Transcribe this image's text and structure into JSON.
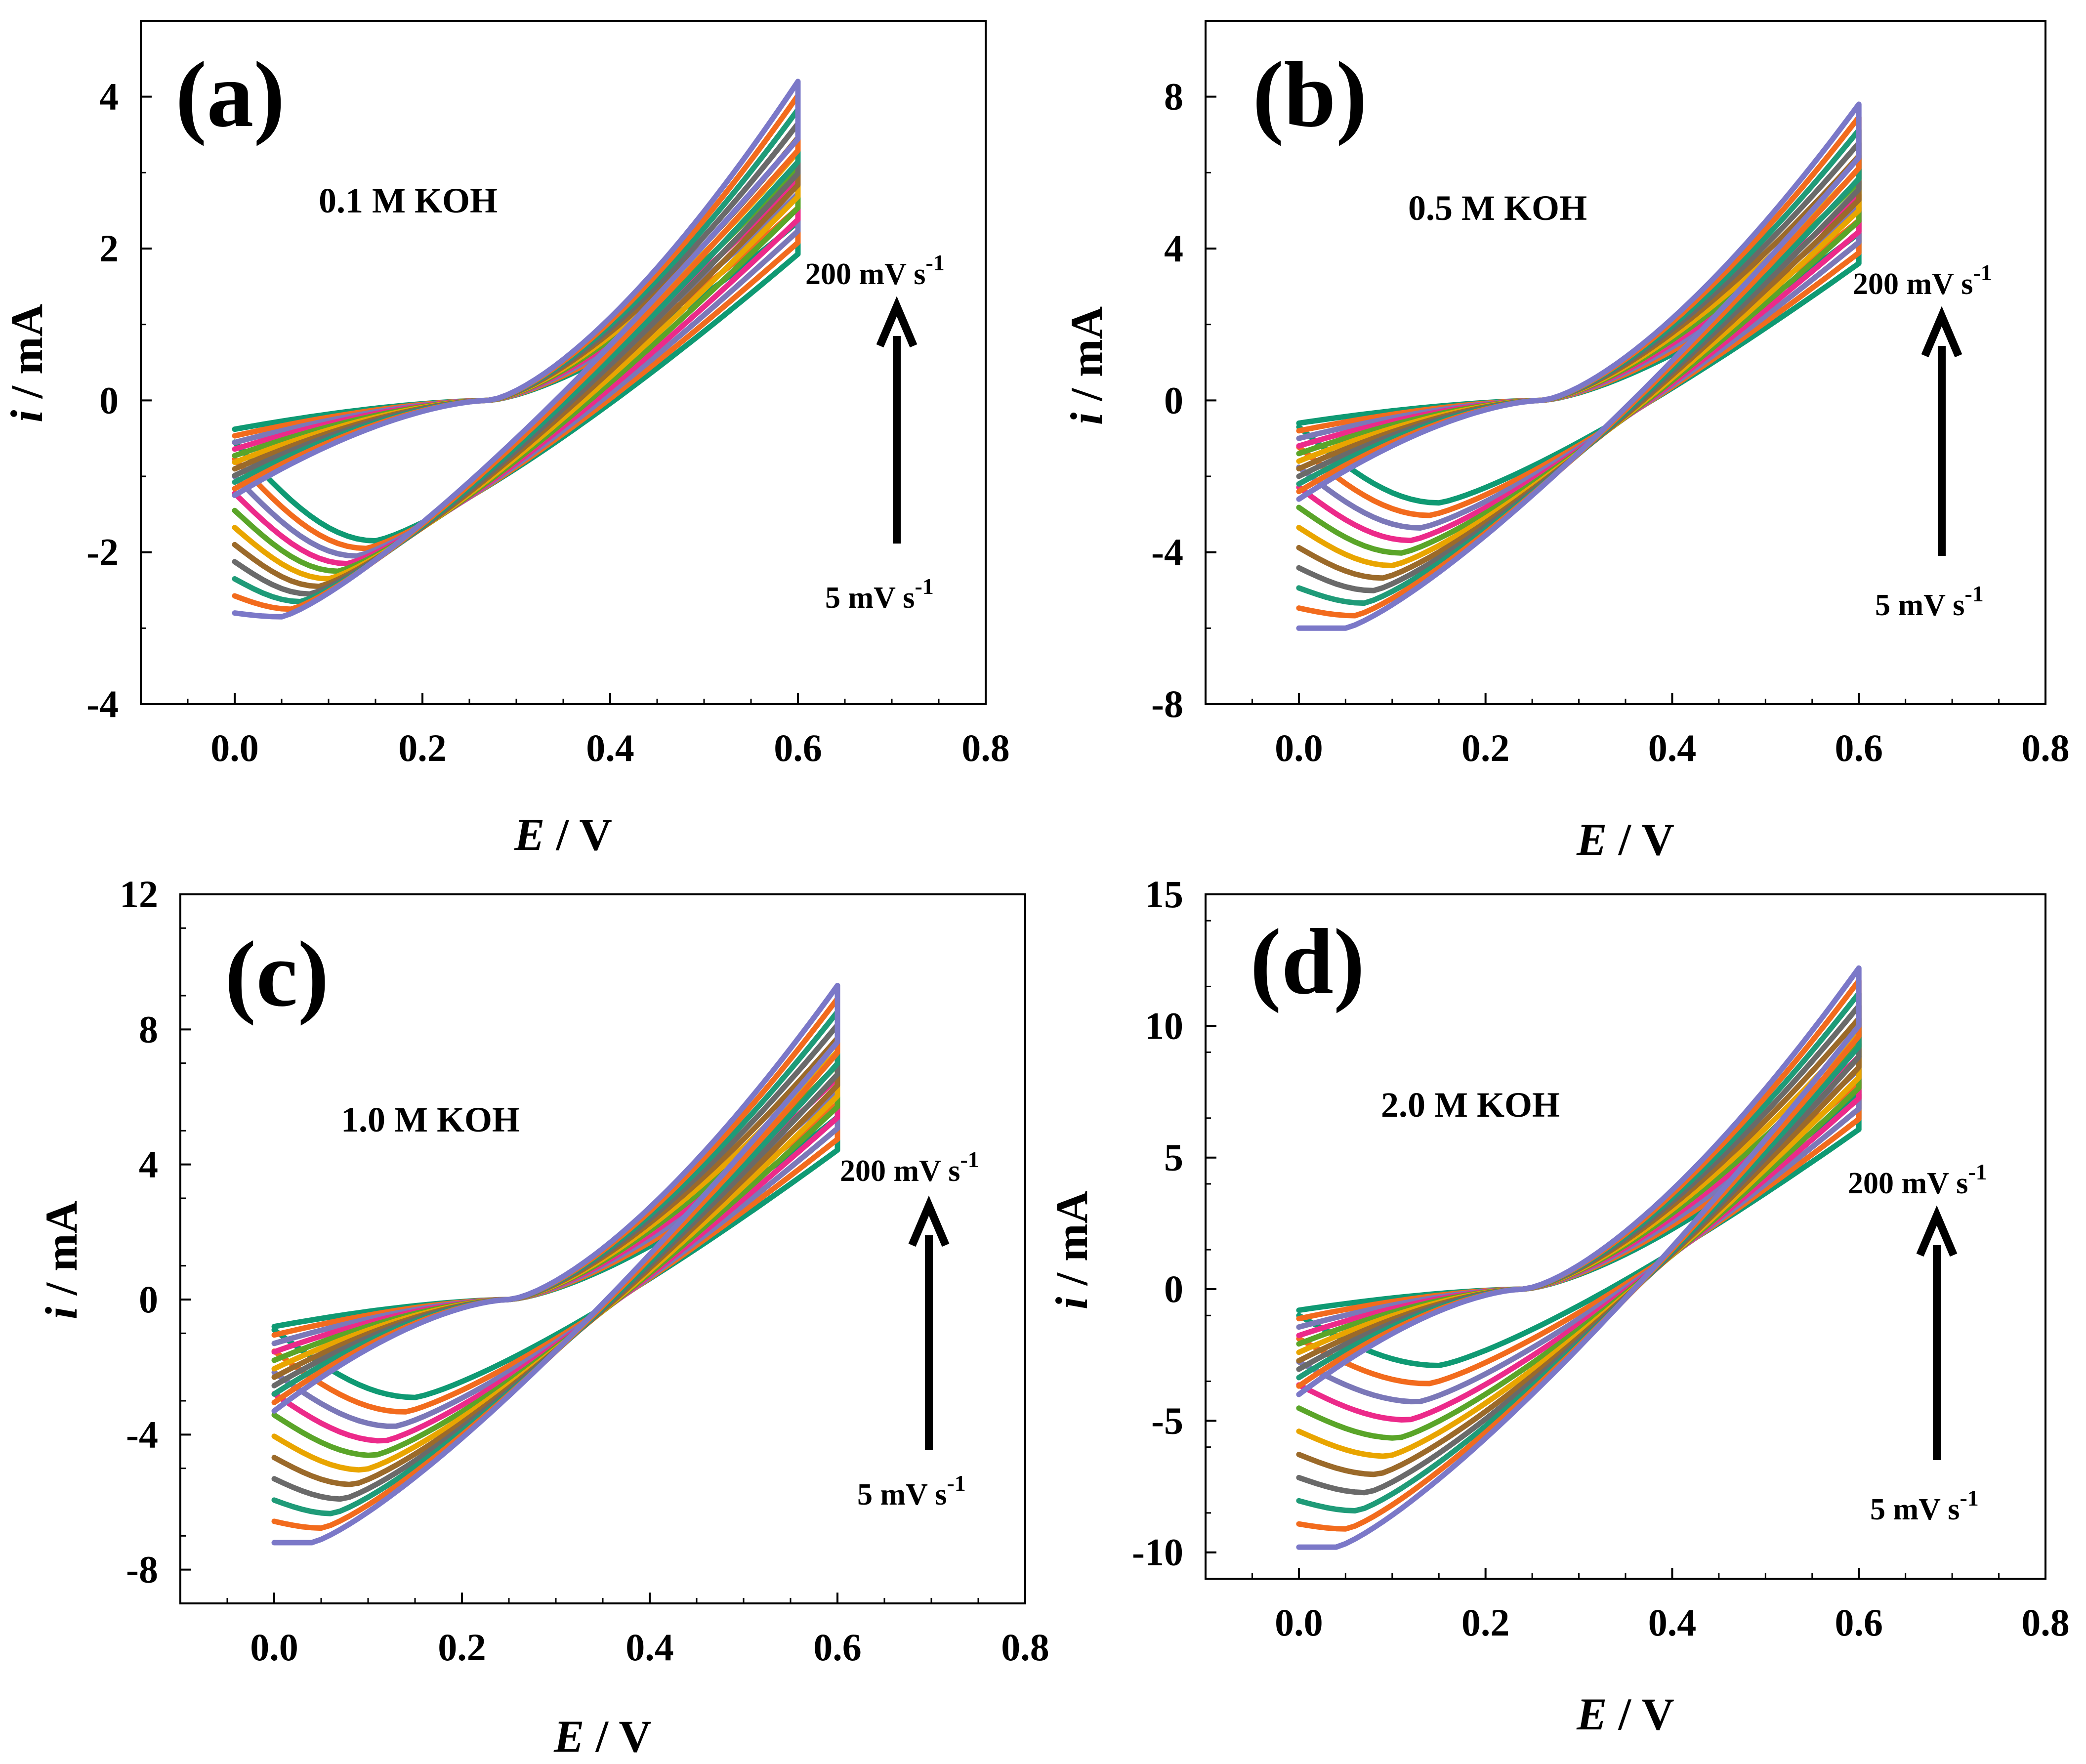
{
  "figure": {
    "description_type": "cyclic-voltammetry",
    "series_colors": [
      "#0f9a73",
      "#f26b1d",
      "#7b78b8",
      "#ec2a8a",
      "#5aa529",
      "#e9a500",
      "#9b6a2a",
      "#6a6a6a",
      "#1f9b78",
      "#f26b1d",
      "#7b78c8"
    ]
  },
  "chart_data": [
    {
      "type": "line",
      "panel": "(a)",
      "label": "0.1 M KOH",
      "xlabel_italic": "E",
      "xlabel_unit": " / V",
      "ylabel_italic": "i",
      "ylabel_unit": " / mA",
      "xlim": [
        -0.1,
        0.8
      ],
      "ylim": [
        -4,
        5
      ],
      "xticks": [
        "0.0",
        "0.2",
        "0.4",
        "0.6",
        "0.8"
      ],
      "xtick_values": [
        0,
        0.2,
        0.4,
        0.6,
        0.8
      ],
      "yticks": [
        "-4",
        "-2",
        "0",
        "2",
        "4"
      ],
      "ytick_values": [
        -4,
        -2,
        0,
        2,
        4
      ],
      "rate_high": "200 mV s",
      "rate_low": "5 mV s",
      "rate_exp": "-1",
      "params": {
        "lo": 0.62,
        "hi": 2.85,
        "vtop": [
          2.35,
          4.2
        ],
        "anodic0": [
          -0.38,
          -1.25
        ],
        "cathodic0": [
          -0.55,
          -2.8
        ],
        "crossX": 0.27,
        "peakE": [
          0.15,
          0.05
        ],
        "peakI": [
          -1.85,
          -2.85
        ],
        "nCurves": 11
      }
    },
    {
      "type": "line",
      "panel": "(b)",
      "label": "0.5 M KOH",
      "xlabel_italic": "E",
      "xlabel_unit": " / V",
      "ylabel_italic": "i",
      "ylabel_unit": " / mA",
      "xlim": [
        -0.1,
        0.8
      ],
      "ylim": [
        -8,
        10
      ],
      "xticks": [
        "0.0",
        "0.2",
        "0.4",
        "0.6",
        "0.8"
      ],
      "xtick_values": [
        0,
        0.2,
        0.4,
        0.6,
        0.8
      ],
      "yticks": [
        "-8",
        "-4",
        "0",
        "4",
        "8"
      ],
      "ytick_values": [
        -8,
        -4,
        0,
        4,
        8
      ],
      "rate_high": "200 mV s",
      "rate_low": "5 mV s",
      "rate_exp": "-1",
      "params": {
        "lo": 0.62,
        "hi": 2.85,
        "vtop": [
          4.4,
          7.8
        ],
        "anodic0": [
          -0.6,
          -2.6
        ],
        "cathodic0": [
          -0.7,
          -6.0
        ],
        "crossX": 0.26,
        "peakE": [
          0.15,
          0.05
        ],
        "peakI": [
          -2.7,
          -6.0
        ],
        "nCurves": 11
      }
    },
    {
      "type": "line",
      "panel": "(c)",
      "label": "1.0 M KOH",
      "xlabel_italic": "E",
      "xlabel_unit": " / V",
      "ylabel_italic": "i",
      "ylabel_unit": " / mA",
      "xlim": [
        -0.1,
        0.8
      ],
      "ylim": [
        -9,
        12
      ],
      "xticks": [
        "0.0",
        "0.2",
        "0.4",
        "0.6",
        "0.8"
      ],
      "xtick_values": [
        0,
        0.2,
        0.4,
        0.6,
        0.8
      ],
      "yticks": [
        "-8",
        "-4",
        "0",
        "4",
        "8",
        "12"
      ],
      "ytick_values": [
        -8,
        -4,
        0,
        4,
        8,
        12
      ],
      "rate_high": "200 mV s",
      "rate_low": "5 mV s",
      "rate_exp": "-1",
      "params": {
        "lo": 0.62,
        "hi": 2.85,
        "vtop": [
          5.4,
          9.3
        ],
        "anodic0": [
          -0.8,
          -3.3
        ],
        "cathodic0": [
          -0.9,
          -7.2
        ],
        "crossX": 0.25,
        "peakE": [
          0.15,
          0.04
        ],
        "peakI": [
          -2.9,
          -7.2
        ],
        "nCurves": 11
      }
    },
    {
      "type": "line",
      "panel": "(d)",
      "label": "2.0 M KOH",
      "xlabel_italic": "E",
      "xlabel_unit": " / V",
      "ylabel_italic": "i",
      "ylabel_unit": " / mA",
      "xlim": [
        -0.1,
        0.8
      ],
      "ylim": [
        -11,
        15
      ],
      "xticks": [
        "0.0",
        "0.2",
        "0.4",
        "0.6",
        "0.8"
      ],
      "xtick_values": [
        0,
        0.2,
        0.4,
        0.6,
        0.8
      ],
      "yticks": [
        "-10",
        "-5",
        "0",
        "5",
        "10",
        "15"
      ],
      "ytick_values": [
        -10,
        -5,
        0,
        5,
        10,
        15
      ],
      "rate_high": "200 mV s",
      "rate_low": "5 mV s",
      "rate_exp": "-1",
      "params": {
        "lo": 0.62,
        "hi": 2.85,
        "vtop": [
          7.4,
          12.2
        ],
        "anodic0": [
          -0.8,
          -4.0
        ],
        "cathodic0": [
          -1.0,
          -9.8
        ],
        "crossX": 0.24,
        "peakE": [
          0.15,
          0.04
        ],
        "peakI": [
          -2.9,
          -9.8
        ],
        "nCurves": 11
      }
    }
  ]
}
